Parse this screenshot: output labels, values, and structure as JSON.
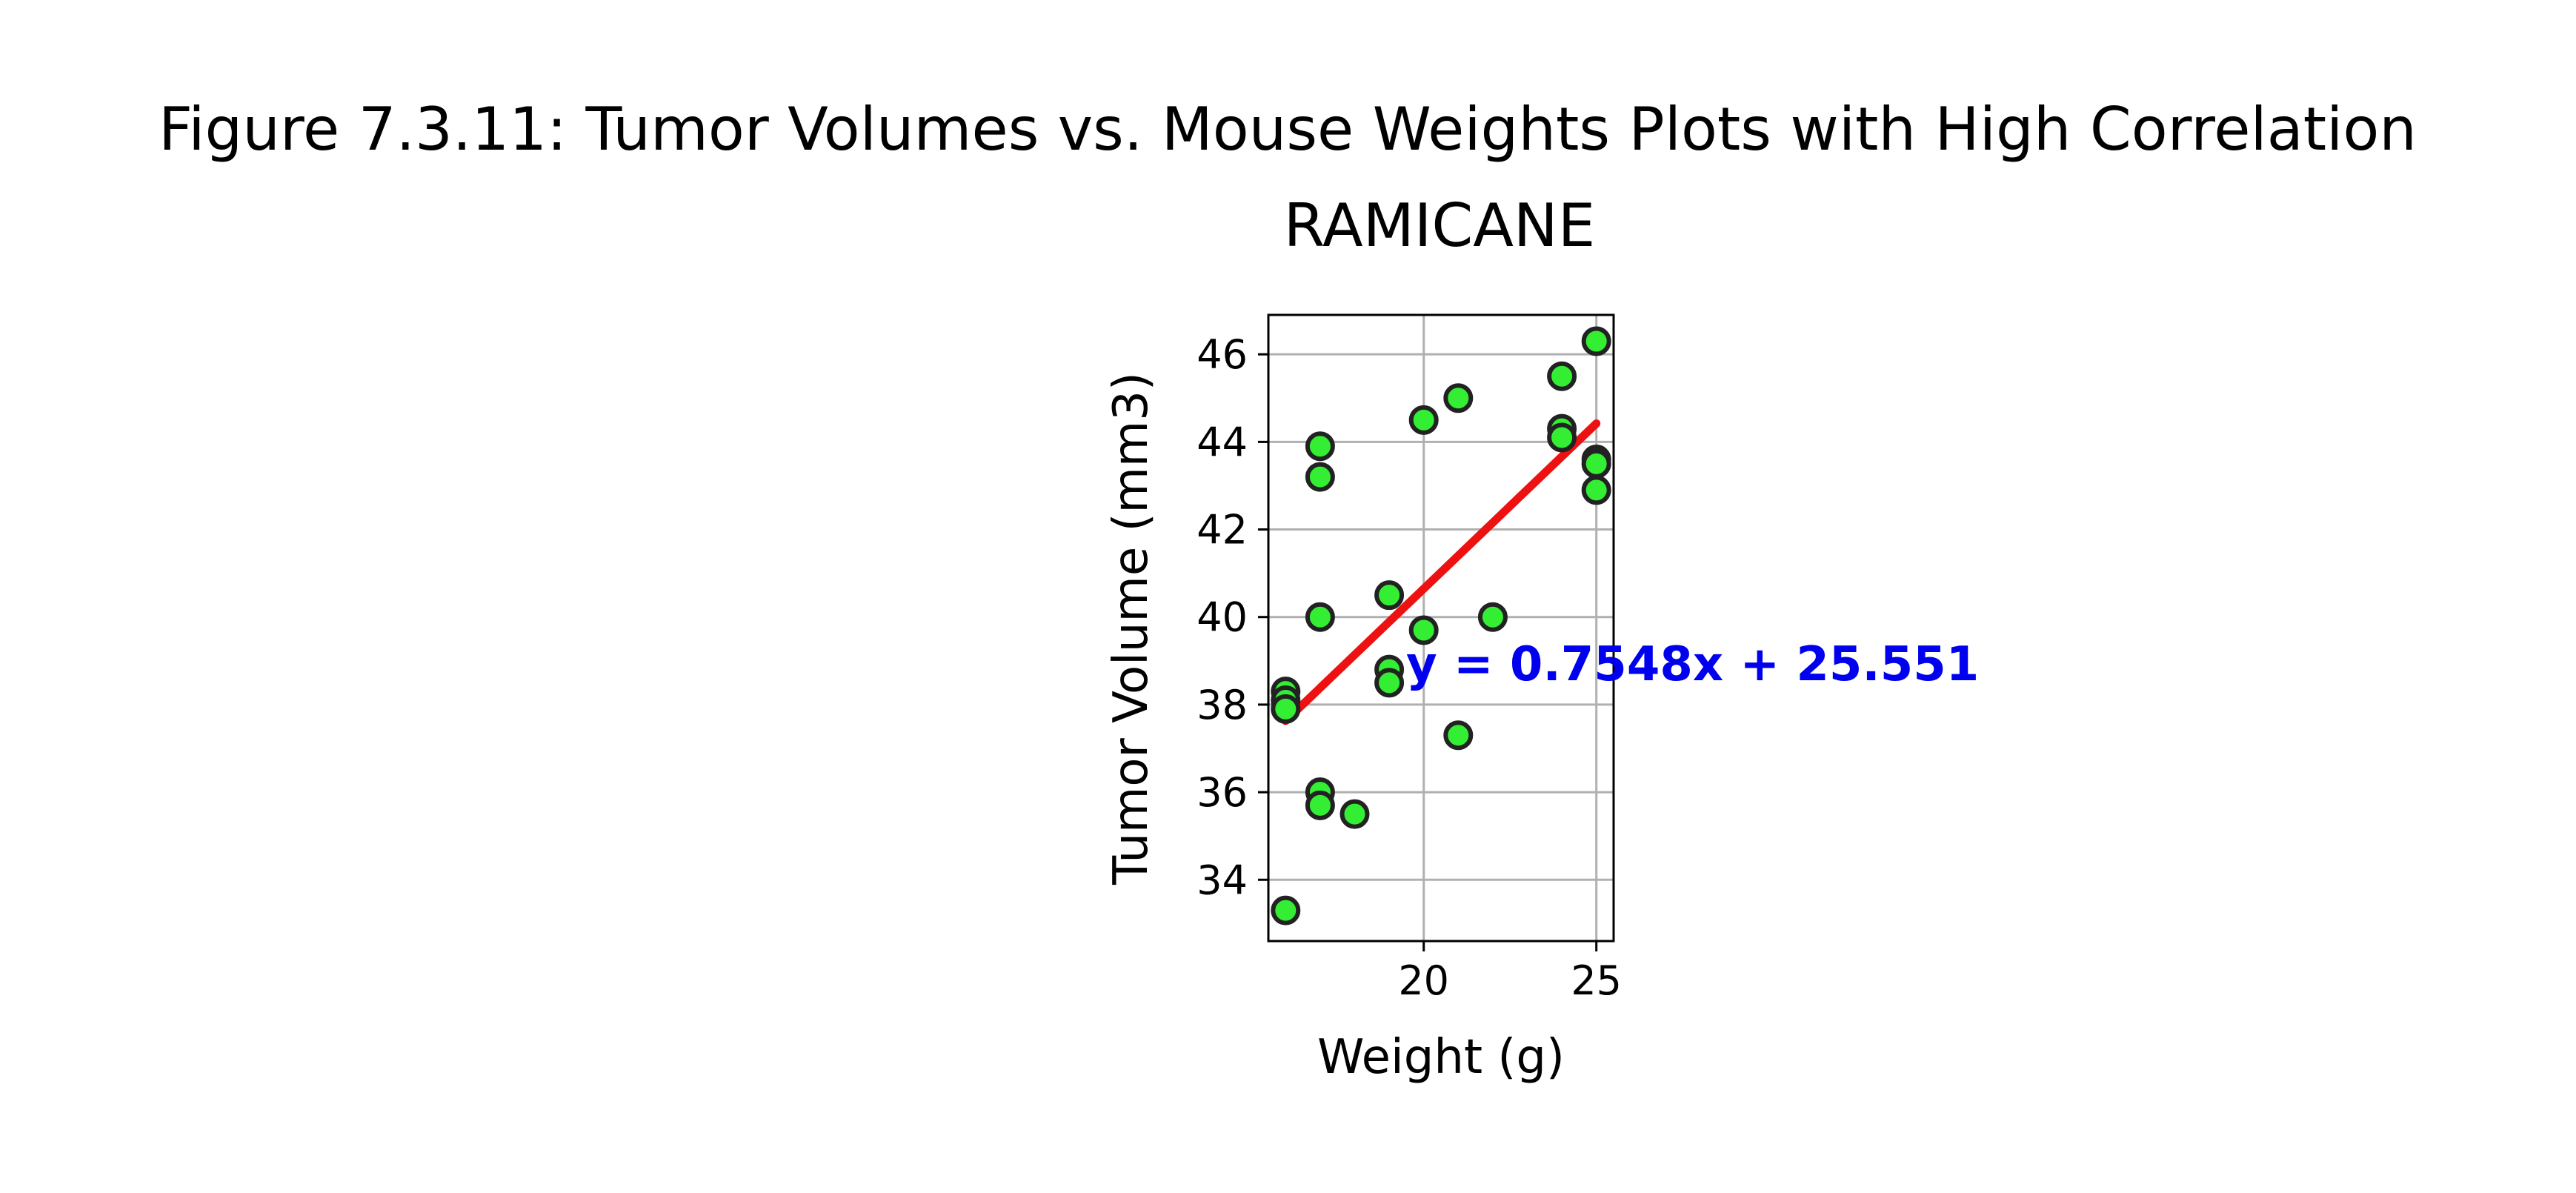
{
  "figure_title": "Figure 7.3.11: Tumor Volumes vs. Mouse Weights Plots with High Correlation",
  "chart_data": {
    "type": "scatter",
    "title": "RAMICANE",
    "xlabel": "Weight (g)",
    "ylabel": "Tumor Volume (mm3)",
    "xlim": [
      15.5,
      25.5
    ],
    "ylim": [
      32.6,
      46.9
    ],
    "xticks": [
      20,
      25
    ],
    "yticks": [
      34,
      36,
      38,
      40,
      42,
      44,
      46
    ],
    "grid": true,
    "legend": "none",
    "marker_color": "#33ee33",
    "marker_edge_color": "#222222",
    "line_color": "#ee1111",
    "annotation_color": "#0000ee",
    "points": [
      {
        "x": 16,
        "y": 38.3
      },
      {
        "x": 16,
        "y": 38.1
      },
      {
        "x": 16,
        "y": 37.9
      },
      {
        "x": 16,
        "y": 33.3
      },
      {
        "x": 17,
        "y": 43.9
      },
      {
        "x": 17,
        "y": 43.2
      },
      {
        "x": 17,
        "y": 40.0
      },
      {
        "x": 17,
        "y": 36.0
      },
      {
        "x": 17,
        "y": 35.7
      },
      {
        "x": 18,
        "y": 35.5
      },
      {
        "x": 19,
        "y": 40.5
      },
      {
        "x": 19,
        "y": 38.8
      },
      {
        "x": 19,
        "y": 38.5
      },
      {
        "x": 20,
        "y": 44.5
      },
      {
        "x": 20,
        "y": 39.7
      },
      {
        "x": 21,
        "y": 45.0
      },
      {
        "x": 21,
        "y": 37.3
      },
      {
        "x": 22,
        "y": 40.0
      },
      {
        "x": 24,
        "y": 45.5
      },
      {
        "x": 24,
        "y": 44.3
      },
      {
        "x": 24,
        "y": 44.1
      },
      {
        "x": 25,
        "y": 46.3
      },
      {
        "x": 25,
        "y": 43.6
      },
      {
        "x": 25,
        "y": 43.5
      },
      {
        "x": 25,
        "y": 42.9
      }
    ],
    "regression": {
      "slope": 0.7548,
      "intercept": 25.551,
      "x_range": [
        16,
        25
      ],
      "equation_label": "y = 0.7548x + 25.551"
    }
  }
}
